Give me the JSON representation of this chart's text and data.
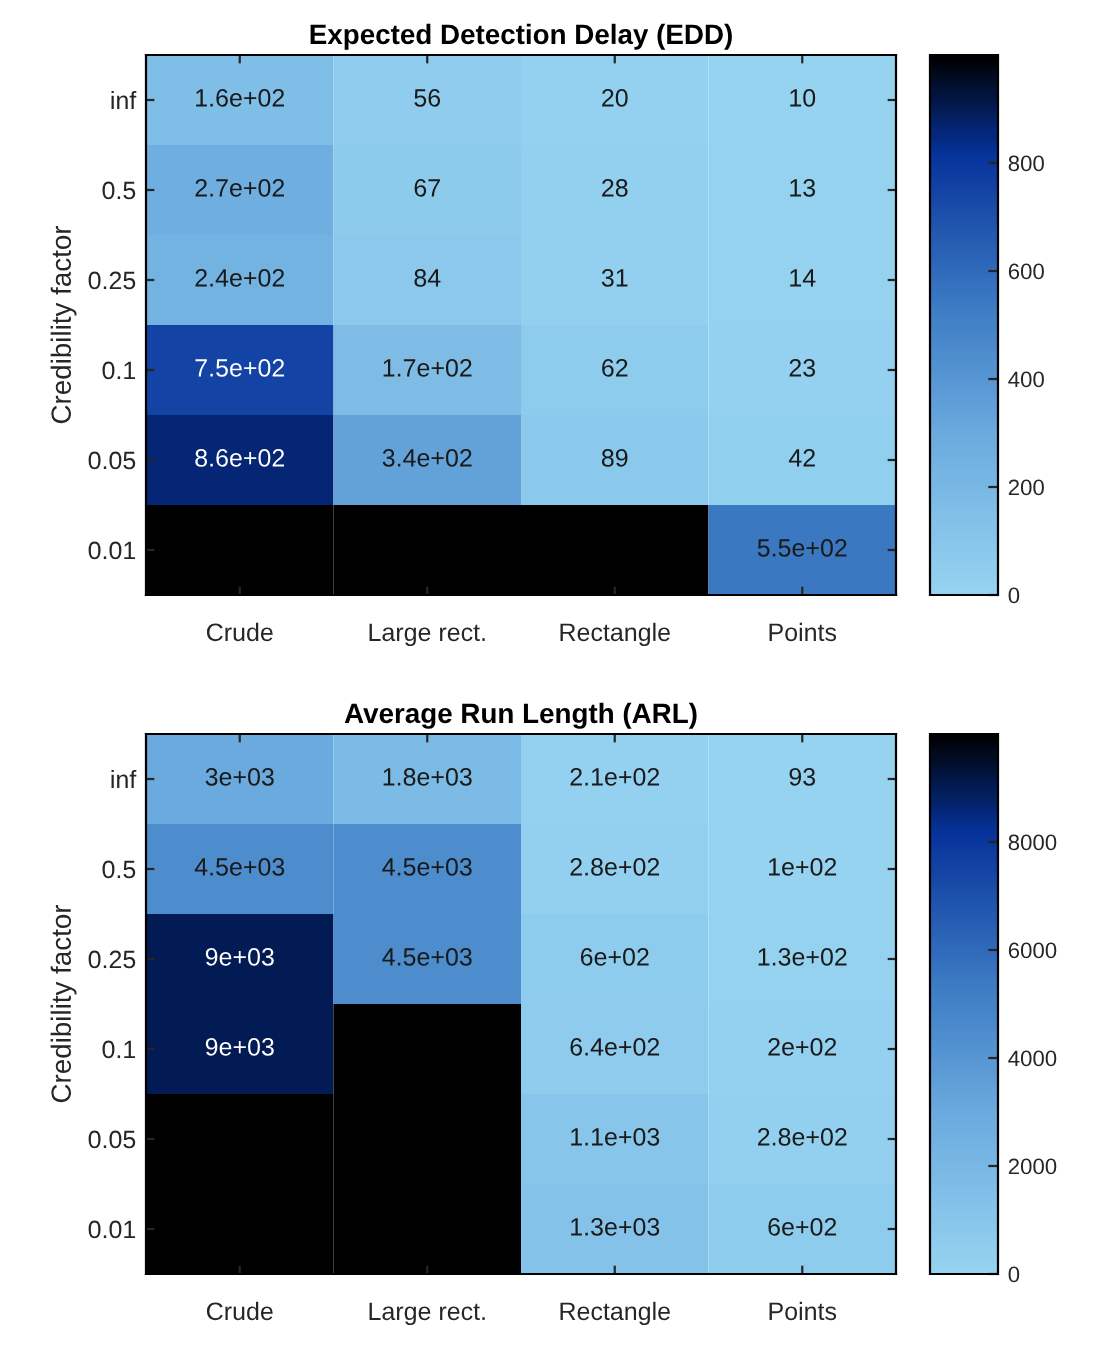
{
  "chart_data": [
    {
      "type": "heatmap",
      "title": "Expected Detection Delay (EDD)",
      "ylabel": "Credibility factor",
      "categories": [
        "Crude",
        "Large rect.",
        "Rectangle",
        "Points"
      ],
      "y_categories": [
        "inf",
        "0.5",
        "0.25",
        "0.1",
        "0.05",
        "0.01"
      ],
      "cells": [
        [
          160,
          56,
          20,
          10
        ],
        [
          270,
          67,
          28,
          13
        ],
        [
          240,
          84,
          31,
          14
        ],
        [
          750,
          170,
          62,
          23
        ],
        [
          860,
          340,
          89,
          42
        ],
        [
          1000,
          1000,
          1000,
          550
        ]
      ],
      "cell_labels": [
        [
          "1.6e+02",
          "56",
          "20",
          "10"
        ],
        [
          "2.7e+02",
          "67",
          "28",
          "13"
        ],
        [
          "2.4e+02",
          "84",
          "31",
          "14"
        ],
        [
          "7.5e+02",
          "1.7e+02",
          "62",
          "23"
        ],
        [
          "8.6e+02",
          "3.4e+02",
          "89",
          "42"
        ],
        [
          null,
          null,
          null,
          "5.5e+02"
        ]
      ],
      "clim": [
        0,
        1000
      ],
      "cticks": [
        0,
        200,
        400,
        600,
        800
      ]
    },
    {
      "type": "heatmap",
      "title": "Average Run Length (ARL)",
      "ylabel": "Credibility factor",
      "categories": [
        "Crude",
        "Large rect.",
        "Rectangle",
        "Points"
      ],
      "y_categories": [
        "inf",
        "0.5",
        "0.25",
        "0.1",
        "0.05",
        "0.01"
      ],
      "cells": [
        [
          3000,
          1800,
          210,
          93
        ],
        [
          4500,
          4500,
          280,
          100
        ],
        [
          9000,
          4500,
          600,
          130
        ],
        [
          9000,
          10000,
          640,
          200
        ],
        [
          10000,
          10000,
          1100,
          280
        ],
        [
          10000,
          10000,
          1300,
          600
        ]
      ],
      "cell_labels": [
        [
          "3e+03",
          "1.8e+03",
          "2.1e+02",
          "93"
        ],
        [
          "4.5e+03",
          "4.5e+03",
          "2.8e+02",
          "1e+02"
        ],
        [
          "9e+03",
          "4.5e+03",
          "6e+02",
          "1.3e+02"
        ],
        [
          "9e+03",
          null,
          "6.4e+02",
          "2e+02"
        ],
        [
          null,
          null,
          "1.1e+03",
          "2.8e+02"
        ],
        [
          null,
          null,
          "1.3e+03",
          "6e+02"
        ]
      ],
      "clim": [
        0,
        10000
      ],
      "cticks": [
        0,
        2000,
        4000,
        6000,
        8000
      ]
    }
  ]
}
